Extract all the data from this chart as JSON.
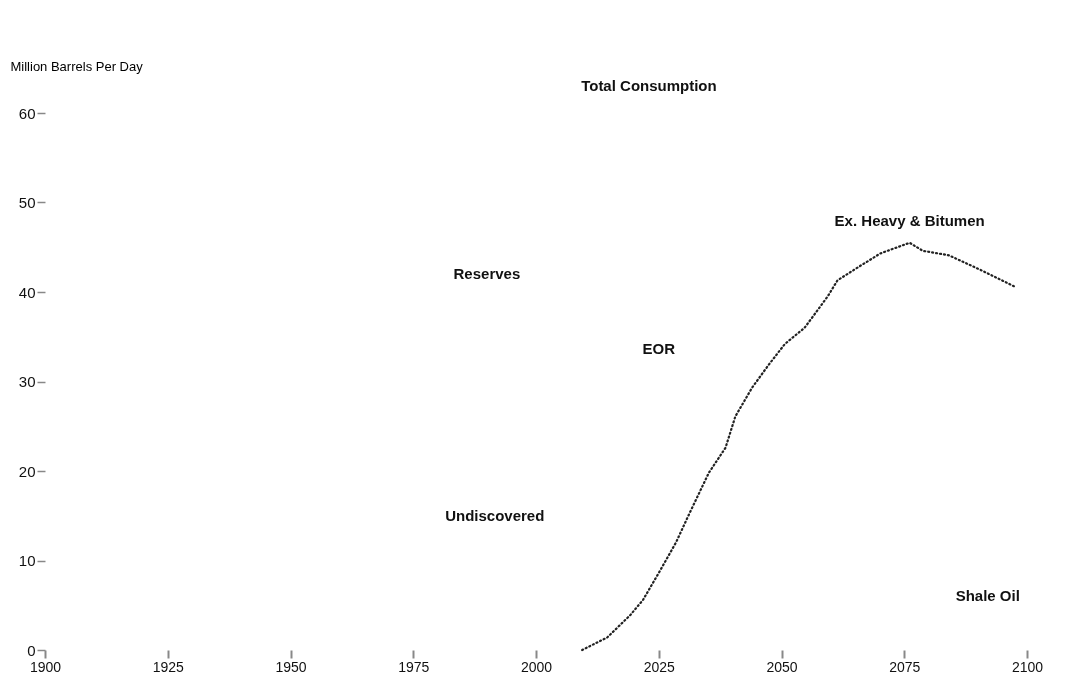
{
  "chart_data": {
    "type": "line",
    "ylabel": "Million Barrels Per Day",
    "x": [
      2009.4,
      2014.5,
      2019.2,
      2021.8,
      2025.2,
      2028.5,
      2031.2,
      2035.2,
      2038.6,
      2040.6,
      2044.0,
      2047.3,
      2050.7,
      2054.7,
      2059.4,
      2061.4,
      2065.4,
      2070.1,
      2076.1,
      2078.8,
      2084.1,
      2090.8,
      2097.5
    ],
    "series": [
      {
        "name": "Ex. Heavy & Bitumen",
        "color": "#222222",
        "values": [
          0,
          1.4,
          3.9,
          5.6,
          8.8,
          12.0,
          15.2,
          19.8,
          22.6,
          26.1,
          29.3,
          31.8,
          34.2,
          36.0,
          39.5,
          41.3,
          42.7,
          44.3,
          45.5,
          44.6,
          44.1,
          42.4,
          40.6
        ]
      }
    ],
    "annotations": [
      "Total Consumption",
      "Reserves",
      "EOR",
      "Undiscovered",
      "Shale Oil"
    ],
    "xlim": [
      1900,
      2100
    ],
    "ylim": [
      0,
      60
    ],
    "xticks": [
      1900,
      1925,
      1950,
      1975,
      2000,
      2025,
      2050,
      2075,
      2100
    ],
    "yticks": [
      0,
      10,
      20,
      30,
      40,
      50,
      60
    ],
    "grid": false,
    "marker": "none",
    "line_style": "dotted"
  }
}
